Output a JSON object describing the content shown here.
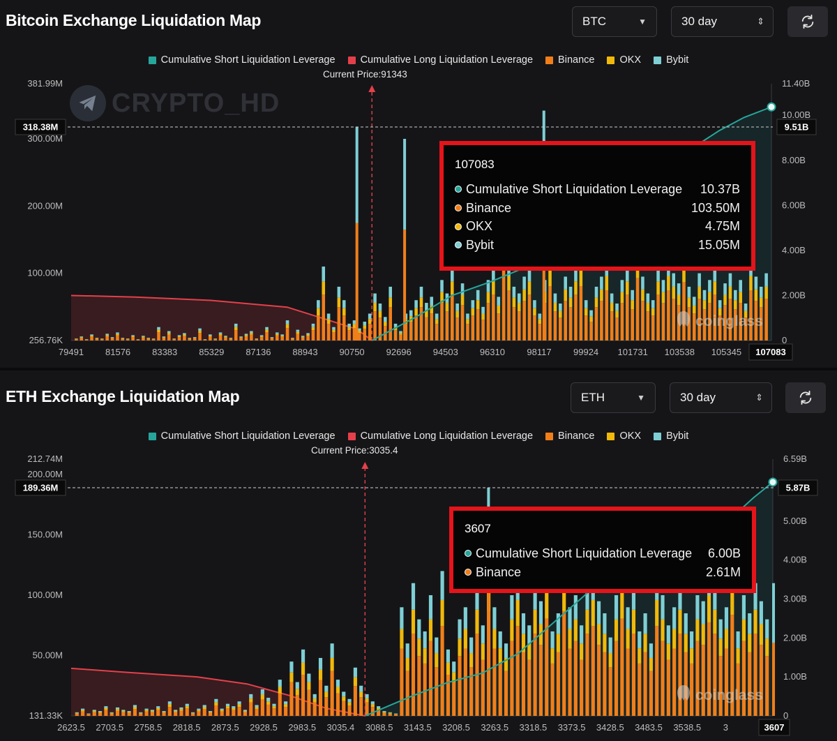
{
  "colors": {
    "short": "#26a69a",
    "long": "#e5404a",
    "binance": "#f07f1a",
    "okx": "#f0b90b",
    "bybit": "#7ecfd4"
  },
  "legend": {
    "short": "Cumulative Short Liquidation Leverage",
    "long": "Cumulative Long Liquidation Leverage",
    "binance": "Binance",
    "okx": "OKX",
    "bybit": "Bybit"
  },
  "btc": {
    "title": "Bitcoin Exchange Liquidation Map",
    "coin_select": "BTC",
    "period_select": "30 day",
    "current_price_label": "Current Price:91343",
    "watermark": "CRYPTO_HD",
    "brand": "coinglass",
    "left_badge": "318.38M",
    "right_badge": "9.51B",
    "x_badge": "107083",
    "tooltip": {
      "title": "107083",
      "rows": [
        {
          "label": "Cumulative Short Liquidation Leverage",
          "value": "10.37B"
        },
        {
          "label": "Binance",
          "value": "103.50M"
        },
        {
          "label": "OKX",
          "value": "4.75M"
        },
        {
          "label": "Bybit",
          "value": "15.05M"
        }
      ]
    }
  },
  "eth": {
    "title": "ETH Exchange Liquidation Map",
    "coin_select": "ETH",
    "period_select": "30 day",
    "current_price_label": "Current Price:3035.4",
    "brand": "coinglass",
    "left_badge": "189.36M",
    "right_badge": "5.87B",
    "x_badge": "3607",
    "tooltip": {
      "title": "3607",
      "rows": [
        {
          "label": "Cumulative Short Liquidation Leverage",
          "value": "6.00B"
        },
        {
          "label": "Binance",
          "value": "2.61M"
        }
      ]
    }
  },
  "chart_data": [
    {
      "type": "bar",
      "title": "Bitcoin Exchange Liquidation Map",
      "x_ticks": [
        "79491",
        "81576",
        "83383",
        "85329",
        "87136",
        "88943",
        "90750",
        "92696",
        "94503",
        "96310",
        "98117",
        "99924",
        "101731",
        "103538",
        "105345"
      ],
      "x_range": [
        79491,
        107083
      ],
      "left_axis_ticks": [
        "381.99M",
        "300.00M",
        "200.00M",
        "100.00M",
        "256.76K"
      ],
      "left_axis_values": [
        381.99,
        300,
        200,
        100,
        0.25676
      ],
      "right_axis_ticks": [
        "11.40B",
        "10.00B",
        "8.00B",
        "6.00B",
        "4.00B",
        "2.00B",
        "0"
      ],
      "right_axis_values": [
        11.4,
        10,
        8,
        6,
        4,
        2,
        0
      ],
      "current_price": 91343,
      "stacked_series": [
        "Binance",
        "OKX",
        "Bybit"
      ],
      "bars_x_start": 79491,
      "bars_x_step": 228,
      "bars_total_M": [
        3,
        6,
        2,
        9,
        4,
        3,
        10,
        5,
        12,
        4,
        3,
        8,
        2,
        7,
        4,
        3,
        20,
        6,
        14,
        3,
        8,
        11,
        4,
        5,
        18,
        2,
        9,
        3,
        12,
        7,
        4,
        25,
        6,
        10,
        14,
        3,
        8,
        20,
        5,
        12,
        9,
        30,
        4,
        16,
        7,
        11,
        25,
        60,
        110,
        40,
        20,
        80,
        60,
        25,
        30,
        18,
        28,
        40,
        70,
        55,
        35,
        80,
        25,
        14,
        40,
        45,
        60,
        80,
        56,
        65,
        40,
        90,
        70,
        110,
        55,
        85,
        40,
        60,
        75,
        50,
        90,
        110,
        65,
        180,
        120,
        80,
        70,
        95,
        110,
        60,
        40,
        90,
        130,
        70,
        55,
        95,
        80,
        110,
        130,
        60,
        45,
        80,
        95,
        120,
        70,
        55,
        90,
        110,
        75,
        150,
        95,
        70,
        60,
        110,
        90,
        120,
        100,
        85,
        140,
        80,
        65,
        100,
        75,
        90,
        110,
        60,
        85,
        100,
        75,
        90,
        55,
        120,
        95,
        80,
        100
      ],
      "bars_peak_M": [
        {
          "x": 90750,
          "value": 318
        },
        {
          "x": 92630,
          "value": 300
        },
        {
          "x": 98117,
          "value": 342
        }
      ],
      "short_cumulative_B": {
        "x": [
          91343,
          93000,
          94500,
          96000,
          97500,
          99000,
          100500,
          102000,
          103500,
          105000,
          106000,
          107083
        ],
        "y": [
          0,
          1.0,
          2.0,
          2.6,
          3.3,
          4.5,
          5.6,
          7.0,
          8.2,
          9.3,
          9.9,
          10.37
        ]
      },
      "long_cumulative_B": {
        "x": [
          79491,
          82000,
          85000,
          88000,
          89500,
          90750,
          91343
        ],
        "y": [
          2.0,
          1.93,
          1.78,
          1.48,
          0.95,
          0.5,
          0
        ]
      }
    },
    {
      "type": "bar",
      "title": "ETH Exchange Liquidation Map",
      "x_ticks": [
        "2623.5",
        "2703.5",
        "2758.5",
        "2818.5",
        "2873.5",
        "2928.5",
        "2983.5",
        "3035.4",
        "3088.5",
        "3143.5",
        "3208.5",
        "3263.5",
        "3318.5",
        "3373.5",
        "3428.5",
        "3483.5",
        "3538.5",
        "3"
      ],
      "x_range": [
        2623.5,
        3607
      ],
      "left_axis_ticks": [
        "212.74M",
        "200.00M",
        "150.00M",
        "100.00M",
        "50.00M",
        "131.33K"
      ],
      "left_axis_values": [
        212.74,
        200,
        150,
        100,
        50,
        0.13133
      ],
      "right_axis_ticks": [
        "6.59B",
        "5.00B",
        "4.00B",
        "3.00B",
        "2.00B",
        "1.00B",
        "0"
      ],
      "right_axis_values": [
        6.59,
        5,
        4,
        3,
        2,
        1,
        0
      ],
      "current_price": 3035.4,
      "stacked_series": [
        "Binance",
        "OKX",
        "Bybit"
      ],
      "bars_x_start": 2623.5,
      "bars_x_step": 7.3,
      "bars_total_M": [
        3,
        6,
        2,
        5,
        4,
        8,
        3,
        7,
        5,
        4,
        9,
        3,
        6,
        5,
        8,
        4,
        12,
        5,
        7,
        10,
        3,
        6,
        9,
        4,
        14,
        6,
        10,
        8,
        12,
        5,
        18,
        9,
        22,
        15,
        10,
        30,
        12,
        45,
        28,
        55,
        35,
        18,
        48,
        25,
        60,
        30,
        20,
        14,
        40,
        25,
        18,
        12,
        8,
        4,
        3,
        2,
        90,
        60,
        110,
        80,
        70,
        100,
        65,
        120,
        55,
        45,
        80,
        90,
        65,
        110,
        75,
        140,
        90,
        70,
        60,
        100,
        120,
        85,
        75,
        110,
        95,
        130,
        70,
        85,
        140,
        90,
        100,
        75,
        110,
        120,
        95,
        85,
        65,
        100,
        130,
        90,
        110,
        70,
        85,
        60,
        120,
        100,
        75,
        90,
        110,
        85,
        70,
        100,
        95,
        125,
        110,
        80,
        90,
        135,
        70,
        100,
        85,
        110,
        95,
        80
      ],
      "bars_peak_M": [
        {
          "x": 3208.5,
          "value": 189
        },
        {
          "x": 3608,
          "value": 110
        }
      ],
      "short_cumulative_B": {
        "x": [
          3035.4,
          3100,
          3150,
          3200,
          3250,
          3300,
          3350,
          3400,
          3450,
          3500,
          3550,
          3580,
          3607
        ],
        "y": [
          0,
          0.5,
          0.85,
          1.1,
          1.6,
          2.4,
          3.2,
          3.5,
          4.0,
          4.6,
          5.1,
          5.6,
          6.0
        ]
      },
      "long_cumulative_B": {
        "x": [
          2623.5,
          2700,
          2800,
          2870,
          2930,
          2980,
          3035.4
        ],
        "y": [
          1.22,
          1.12,
          1.0,
          0.82,
          0.52,
          0.2,
          0
        ]
      }
    }
  ]
}
